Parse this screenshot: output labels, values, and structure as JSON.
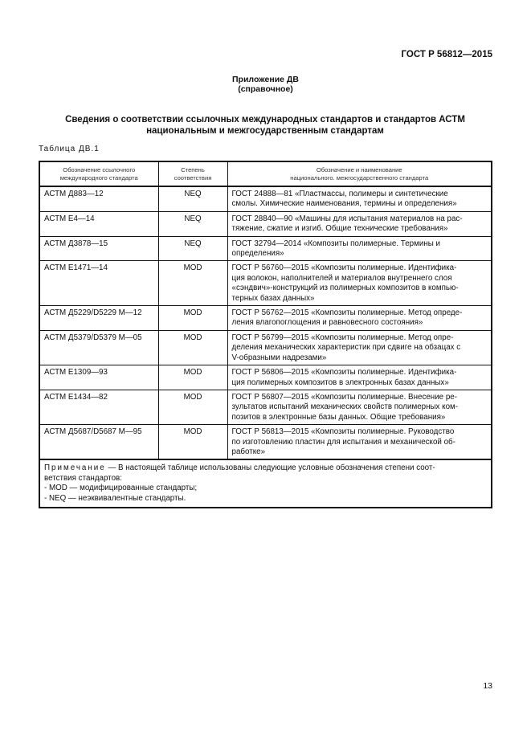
{
  "header": {
    "doc_id": "ГОСТ Р 56812—2015"
  },
  "annex": {
    "title": "Приложение ДВ",
    "subtitle": "(справочное)"
  },
  "section_title": {
    "line1": "Сведения о соответствии ссылочных международных стандартов и стандартов АСТМ",
    "line2": "национальным и межгосударственным стандартам"
  },
  "table": {
    "label": "Таблица ДВ.1",
    "headers": [
      "Обозначение ссылочного\nмеждународного стандарта",
      "Степень\nсоответствия",
      "Обозначение и наименование\nнационального. межгосударственного стандарта"
    ],
    "rows": [
      {
        "ref": "АСТМ Д883—12",
        "degree": "NEQ",
        "national": "ГОСТ 24888—81 «Пластмассы, полимеры и синтетические\nсмолы. Химические наименования, термины и определения»"
      },
      {
        "ref": "АСТМ Е4—14",
        "degree": "NEQ",
        "national": "ГОСТ 28840—90 «Машины для испытания материалов на рас-\nтяжение, сжатие и изгиб. Общие технические требования»"
      },
      {
        "ref": "АСТМ Д3878—15",
        "degree": "NEQ",
        "national": "ГОСТ 32794—2014 «Композиты полимерные. Термины и\nопределения»"
      },
      {
        "ref": "АСТМ Е1471—14",
        "degree": "MOD",
        "national": "ГОСТ Р 56760—2015 «Композиты полимерные. Идентифика-\nция волокон, наполнителей и материалов внутреннего слоя\n«сэндвич»-конструкций из полимерных композитов в компью-\nтерных базах данных»"
      },
      {
        "ref": "АСТМ Д5229/D5229 М—12",
        "degree": "MOD",
        "national": "ГОСТ Р 56762—2015 «Композиты полимерные. Метод опреде-\nления влагопоглощения и равновесного состояния»"
      },
      {
        "ref": "АСТМ Д5379/D5379 М—05",
        "degree": "MOD",
        "national": "ГОСТ Р 56799—2015 «Композиты полимерные. Метод опре-\nделения механических характеристик при сдвиге на обзацах с\nV-образными надрезами»"
      },
      {
        "ref": "АСТМ Е1309—93",
        "degree": "MOD",
        "national": "ГОСТ Р 56806—2015 «Композиты полимерные. Идентифика-\nция полимерных композитов в электронных базах данных»"
      },
      {
        "ref": "АСТМ Е1434—82",
        "degree": "MOD",
        "national": "ГОСТ Р 56807—2015 «Композиты полимерные. Внесение ре-\nзультатов испытаний механических свойств полимерных ком-\nпозитов в электронные базы данных. Общие требования»"
      },
      {
        "ref": "АСТМ Д5687/D5687 М—95",
        "degree": "MOD",
        "national": "ГОСТ Р 56813—2015 «Композиты полимерные. Руководство\nпо изготовлению пластин для испытания и механической об-\nработке»"
      }
    ],
    "note": {
      "label": "Примечание",
      "text": " — В настоящей таблице использованы следующие условные обозначения степени соот-\nветствия стандартов:\n   - MOD — модифицированные стандарты;\n   - NEQ — неэквивалентные стандарты."
    }
  },
  "page_number": "13"
}
